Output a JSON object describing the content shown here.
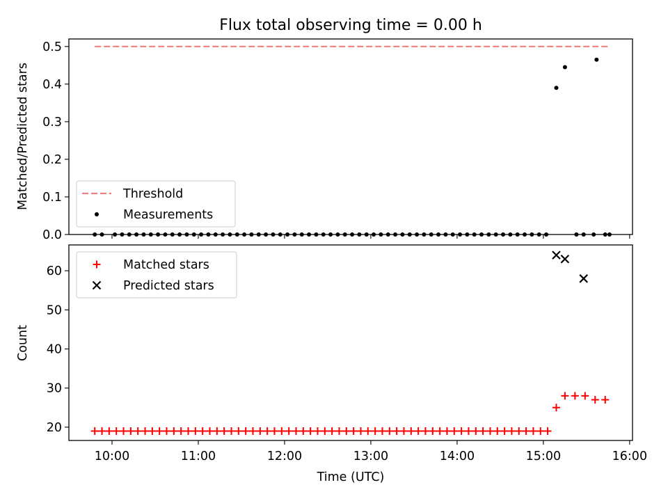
{
  "chart_data": [
    {
      "type": "scatter",
      "title": "Flux total observing time = 0.00 h",
      "xlabel": "",
      "ylabel": "Matched/Predicted stars",
      "xlim": [
        "09:30",
        "16:02"
      ],
      "ylim": [
        0,
        0.52
      ],
      "yticks": [
        0.0,
        0.1,
        0.2,
        0.3,
        0.4,
        0.5
      ],
      "ytick_labels": [
        "0.0",
        "0.1",
        "0.2",
        "0.3",
        "0.4",
        "0.5"
      ],
      "legend_position": "lower-left",
      "series": [
        {
          "name": "Threshold",
          "kind": "dashed-line",
          "color": "#f08080",
          "x": [
            "09:48",
            "15:45"
          ],
          "y": [
            0.5,
            0.5
          ]
        },
        {
          "name": "Measurements",
          "kind": "dot",
          "color": "#000000",
          "x": [
            "09:48",
            "09:53",
            "10:02",
            "10:07",
            "10:12",
            "10:17",
            "10:22",
            "10:27",
            "10:32",
            "10:37",
            "10:42",
            "10:47",
            "10:52",
            "10:57",
            "11:02",
            "11:07",
            "11:12",
            "11:17",
            "11:22",
            "11:27",
            "11:32",
            "11:37",
            "11:42",
            "11:47",
            "11:52",
            "11:57",
            "12:02",
            "12:07",
            "12:12",
            "12:17",
            "12:22",
            "12:27",
            "12:32",
            "12:37",
            "12:42",
            "12:47",
            "12:52",
            "12:57",
            "13:02",
            "13:07",
            "13:12",
            "13:17",
            "13:22",
            "13:27",
            "13:32",
            "13:37",
            "13:42",
            "13:47",
            "13:52",
            "13:57",
            "14:02",
            "14:07",
            "14:12",
            "14:17",
            "14:22",
            "14:27",
            "14:32",
            "14:37",
            "14:42",
            "14:47",
            "14:52",
            "14:57",
            "15:02",
            "15:09",
            "15:15",
            "15:23",
            "15:28",
            "15:37",
            "15:46",
            "15:35",
            "15:43"
          ],
          "y": [
            0,
            0,
            0,
            0,
            0,
            0,
            0,
            0,
            0,
            0,
            0,
            0,
            0,
            0,
            0,
            0,
            0,
            0,
            0,
            0,
            0,
            0,
            0,
            0,
            0,
            0,
            0,
            0,
            0,
            0,
            0,
            0,
            0,
            0,
            0,
            0,
            0,
            0,
            0,
            0,
            0,
            0,
            0,
            0,
            0,
            0,
            0,
            0,
            0,
            0,
            0,
            0,
            0,
            0,
            0,
            0,
            0,
            0,
            0,
            0,
            0,
            0,
            0,
            0.39,
            0.445,
            0,
            0,
            0.465,
            0,
            0,
            0
          ]
        }
      ]
    },
    {
      "type": "scatter",
      "title": "",
      "xlabel": "Time (UTC)",
      "ylabel": "Count",
      "xlim": [
        "09:30",
        "16:02"
      ],
      "ylim": [
        16.6,
        66.6
      ],
      "yticks": [
        20,
        30,
        40,
        50,
        60
      ],
      "ytick_labels": [
        "20",
        "30",
        "40",
        "50",
        "60"
      ],
      "xticks": [
        "10:00",
        "11:00",
        "12:00",
        "13:00",
        "14:00",
        "15:00",
        "16:00"
      ],
      "xtick_labels": [
        "10:00",
        "11:00",
        "12:00",
        "13:00",
        "14:00",
        "15:00",
        "16:00"
      ],
      "legend_position": "upper-left",
      "series": [
        {
          "name": "Matched stars",
          "kind": "plus",
          "color": "#ff0000",
          "x": [
            "09:48",
            "09:53",
            "09:58",
            "10:03",
            "10:08",
            "10:13",
            "10:18",
            "10:23",
            "10:28",
            "10:33",
            "10:38",
            "10:43",
            "10:48",
            "10:53",
            "10:58",
            "11:03",
            "11:08",
            "11:13",
            "11:18",
            "11:23",
            "11:28",
            "11:33",
            "11:38",
            "11:43",
            "11:48",
            "11:53",
            "11:58",
            "12:03",
            "12:08",
            "12:13",
            "12:18",
            "12:23",
            "12:28",
            "12:33",
            "12:38",
            "12:43",
            "12:48",
            "12:53",
            "12:58",
            "13:03",
            "13:08",
            "13:13",
            "13:18",
            "13:23",
            "13:28",
            "13:33",
            "13:38",
            "13:43",
            "13:48",
            "13:53",
            "13:58",
            "14:03",
            "14:08",
            "14:13",
            "14:18",
            "14:23",
            "14:28",
            "14:33",
            "14:38",
            "14:43",
            "14:48",
            "14:53",
            "14:58",
            "15:03",
            "15:09",
            "15:15",
            "15:22",
            "15:29",
            "15:36",
            "15:43"
          ],
          "y": [
            19,
            19,
            19,
            19,
            19,
            19,
            19,
            19,
            19,
            19,
            19,
            19,
            19,
            19,
            19,
            19,
            19,
            19,
            19,
            19,
            19,
            19,
            19,
            19,
            19,
            19,
            19,
            19,
            19,
            19,
            19,
            19,
            19,
            19,
            19,
            19,
            19,
            19,
            19,
            19,
            19,
            19,
            19,
            19,
            19,
            19,
            19,
            19,
            19,
            19,
            19,
            19,
            19,
            19,
            19,
            19,
            19,
            19,
            19,
            19,
            19,
            19,
            19,
            19,
            25,
            28,
            28,
            28,
            27,
            27
          ]
        },
        {
          "name": "Predicted stars",
          "kind": "cross",
          "color": "#000000",
          "x": [
            "15:09",
            "15:15",
            "15:28"
          ],
          "y": [
            64,
            63,
            58
          ]
        }
      ]
    }
  ]
}
